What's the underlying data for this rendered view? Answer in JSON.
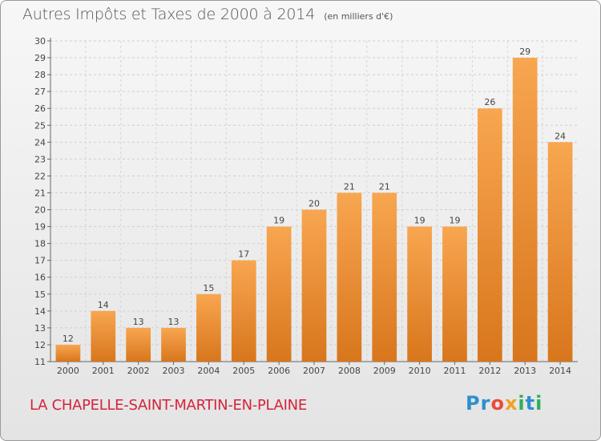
{
  "chart_data": {
    "type": "bar",
    "title": "Autres Impôts et Taxes de 2000 à 2014",
    "subtitle": "(en milliers d'€)",
    "categories": [
      "2000",
      "2001",
      "2002",
      "2003",
      "2004",
      "2005",
      "2006",
      "2007",
      "2008",
      "2009",
      "2010",
      "2011",
      "2012",
      "2013",
      "2014"
    ],
    "values": [
      12,
      14,
      13,
      13,
      15,
      17,
      19,
      20,
      21,
      21,
      19,
      19,
      26,
      29,
      24
    ],
    "ylim": [
      11,
      30
    ],
    "yticks": [
      11,
      12,
      13,
      14,
      15,
      16,
      17,
      18,
      19,
      20,
      21,
      22,
      23,
      24,
      25,
      26,
      27,
      28,
      29,
      30
    ],
    "grid": true,
    "bar_color": "#f29a3a"
  },
  "commune": "LA CHAPELLE-SAINT-MARTIN-EN-PLAINE",
  "logo": {
    "text": "Proxiti",
    "letters": [
      {
        "ch": "P",
        "color": "#2e8fd0"
      },
      {
        "ch": "r",
        "color": "#2e8fd0"
      },
      {
        "ch": "o",
        "color": "#e84c3c"
      },
      {
        "ch": "x",
        "color": "#f2a21f"
      },
      {
        "ch": "i",
        "color": "#2eaf5a"
      },
      {
        "ch": "t",
        "color": "#2e8fd0"
      },
      {
        "ch": "i",
        "color": "#2eaf5a"
      }
    ]
  }
}
